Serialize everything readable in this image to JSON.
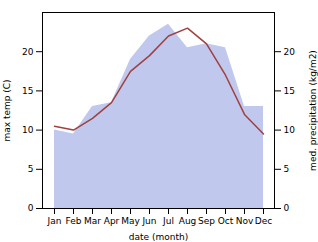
{
  "chart_data": {
    "type": "line",
    "categories": [
      "Jan",
      "Feb",
      "Mar",
      "Apr",
      "May",
      "Jun",
      "Jul",
      "Aug",
      "Sep",
      "Oct",
      "Nov",
      "Dec"
    ],
    "series": [
      {
        "type": "area",
        "color": "#c0c8ee",
        "values": [
          10.0,
          9.5,
          13.0,
          13.5,
          19.0,
          22.0,
          23.5,
          20.5,
          21.0,
          20.5,
          13.0,
          13.0
        ]
      },
      {
        "type": "line",
        "color": "#a04040",
        "values": [
          10.5,
          10.0,
          11.5,
          13.5,
          17.5,
          19.5,
          22.0,
          23.0,
          21.0,
          17.0,
          12.0,
          9.5
        ]
      }
    ],
    "xlabel": "date (month)",
    "ylabel": "max temp (C)",
    "y2label": "med. precipitation (kg/m2)",
    "ylim": [
      0,
      25
    ],
    "yticks": [
      0,
      5,
      10,
      15,
      20
    ],
    "y2lim": [
      0,
      25
    ],
    "y2ticks": [
      0,
      5,
      10,
      15,
      20
    ],
    "grid": false
  }
}
